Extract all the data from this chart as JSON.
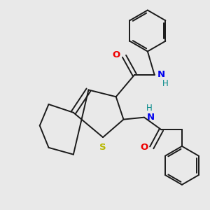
{
  "background_color": "#e9e9e9",
  "bond_color": "#1a1a1a",
  "S_color": "#b8b800",
  "N_color": "#0000ee",
  "O_color": "#ee0000",
  "H_color": "#008888",
  "lw": 1.4,
  "figsize": [
    3.0,
    3.0
  ],
  "dpi": 100,
  "xlim": [
    0.0,
    3.0
  ],
  "ylim": [
    0.0,
    3.0
  ]
}
